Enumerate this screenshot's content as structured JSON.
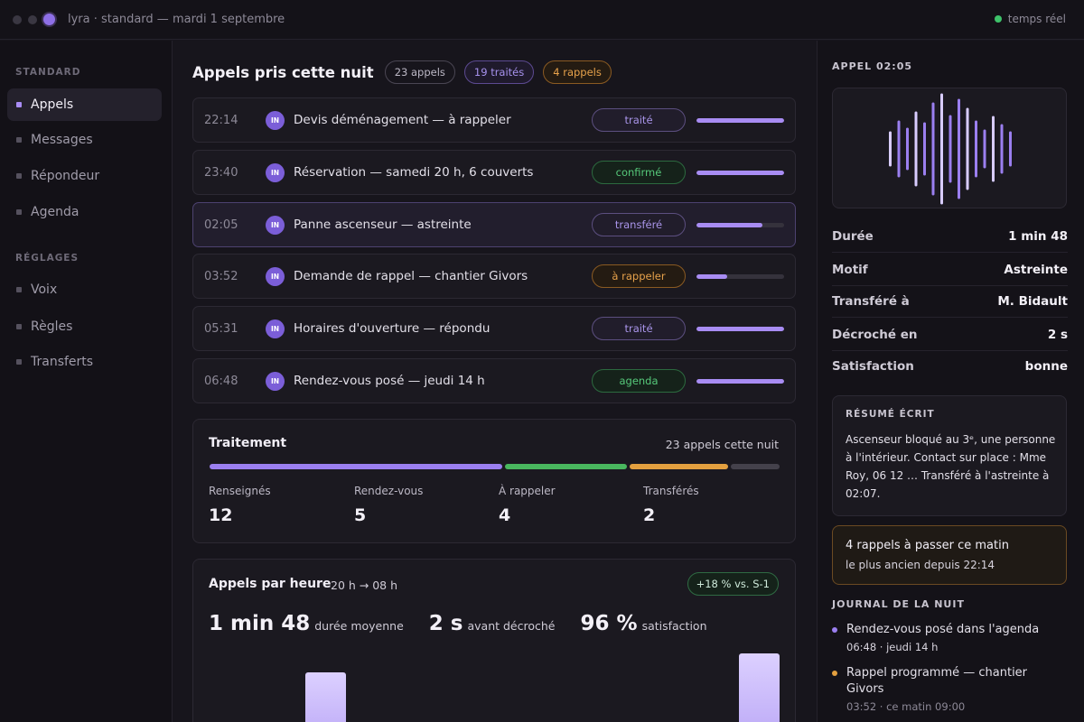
{
  "window": {
    "title": "lyra · standard — mardi 1 septembre",
    "realtime_label": "temps réel"
  },
  "sidebar": {
    "sections": [
      {
        "label": "STANDARD",
        "items": [
          {
            "label": "Appels",
            "active": true
          },
          {
            "label": "Messages"
          },
          {
            "label": "Répondeur"
          },
          {
            "label": "Agenda"
          }
        ]
      },
      {
        "label": "RÉGLAGES",
        "items": [
          {
            "label": "Voix"
          },
          {
            "label": "Règles"
          },
          {
            "label": "Transferts"
          }
        ]
      }
    ]
  },
  "main": {
    "title": "Appels pris cette nuit",
    "chips": [
      "23 appels",
      "19 traités",
      "4 rappels"
    ],
    "calls": [
      {
        "time": "22:14",
        "badge": "IN",
        "label": "Devis déménagement — à rappeler",
        "status": "traité",
        "status_color": "violet",
        "progress": 1.0
      },
      {
        "time": "23:40",
        "badge": "IN",
        "label": "Réservation — samedi 20 h, 6 couverts",
        "status": "confirmé",
        "status_color": "green",
        "progress": 1.0
      },
      {
        "time": "02:05",
        "badge": "IN",
        "label": "Panne ascenseur — astreinte",
        "status": "transféré",
        "status_color": "violet",
        "progress": 0.75,
        "selected": true
      },
      {
        "time": "03:52",
        "badge": "IN",
        "label": "Demande de rappel — chantier Givors",
        "status": "à rappeler",
        "status_color": "orange",
        "progress": 0.35
      },
      {
        "time": "05:31",
        "badge": "IN",
        "label": "Horaires d'ouverture — répondu",
        "status": "traité",
        "status_color": "violet",
        "progress": 1.0
      },
      {
        "time": "06:48",
        "badge": "IN",
        "label": "Rendez-vous posé — jeudi 14 h",
        "status": "agenda",
        "status_color": "green",
        "progress": 1.0
      }
    ],
    "treatment": {
      "title": "Traitement",
      "note": "23 appels cette nuit",
      "stats": [
        {
          "label": "Renseignés",
          "value": "12",
          "color": "#9b7ff0"
        },
        {
          "label": "Rendez-vous",
          "value": "5",
          "color": "#49b75e"
        },
        {
          "label": "À rappeler",
          "value": "4",
          "color": "#e4a03f"
        },
        {
          "label": "Transférés",
          "value": "2",
          "color": "#44414b"
        }
      ]
    },
    "hourly": {
      "title": "Appels par heure",
      "range": "20 h → 08 h",
      "trend": "+18 % vs. S-1",
      "metrics": [
        {
          "value": "1 min 48",
          "caption": "durée moyenne"
        },
        {
          "value": "2 s",
          "caption": "avant décroché"
        },
        {
          "value": "96 %",
          "caption": "satisfaction"
        }
      ]
    }
  },
  "detail": {
    "title": "APPEL 02:05",
    "rows": [
      {
        "key": "Durée",
        "value": "1 min 48"
      },
      {
        "key": "Motif",
        "value": "Astreinte"
      },
      {
        "key": "Transféré à",
        "value": "M. Bidault"
      },
      {
        "key": "Décroché en",
        "value": "2 s"
      },
      {
        "key": "Satisfaction",
        "value": "bonne"
      }
    ],
    "summary": {
      "label": "RÉSUMÉ ÉCRIT",
      "text": "Ascenseur bloqué au 3ᵉ, une personne à l'intérieur. Contact sur place : Mme Roy, 06 12 … Transféré à l'astreinte à 02:07."
    },
    "callback": {
      "title": "4 rappels à passer ce matin",
      "subtitle": "le plus ancien depuis 22:14"
    },
    "log": {
      "label": "JOURNAL DE LA NUIT",
      "items": [
        {
          "title": "Rendez-vous posé dans l'agenda",
          "meta": "06:48 · jeudi 14 h",
          "color": "#9b7ff0"
        },
        {
          "title": "Rappel programmé — chantier Givors",
          "meta": "03:52 · ce matin 09:00",
          "color": "#e4a03f"
        }
      ]
    }
  },
  "colors": {
    "accent": "#9b7ff0",
    "green": "#49b75e",
    "orange": "#e4a03f",
    "live": "#3ec26a"
  },
  "icons": {
    "badge_icon": "inbound-call-icon",
    "waveform": "audio-waveform-icon"
  }
}
